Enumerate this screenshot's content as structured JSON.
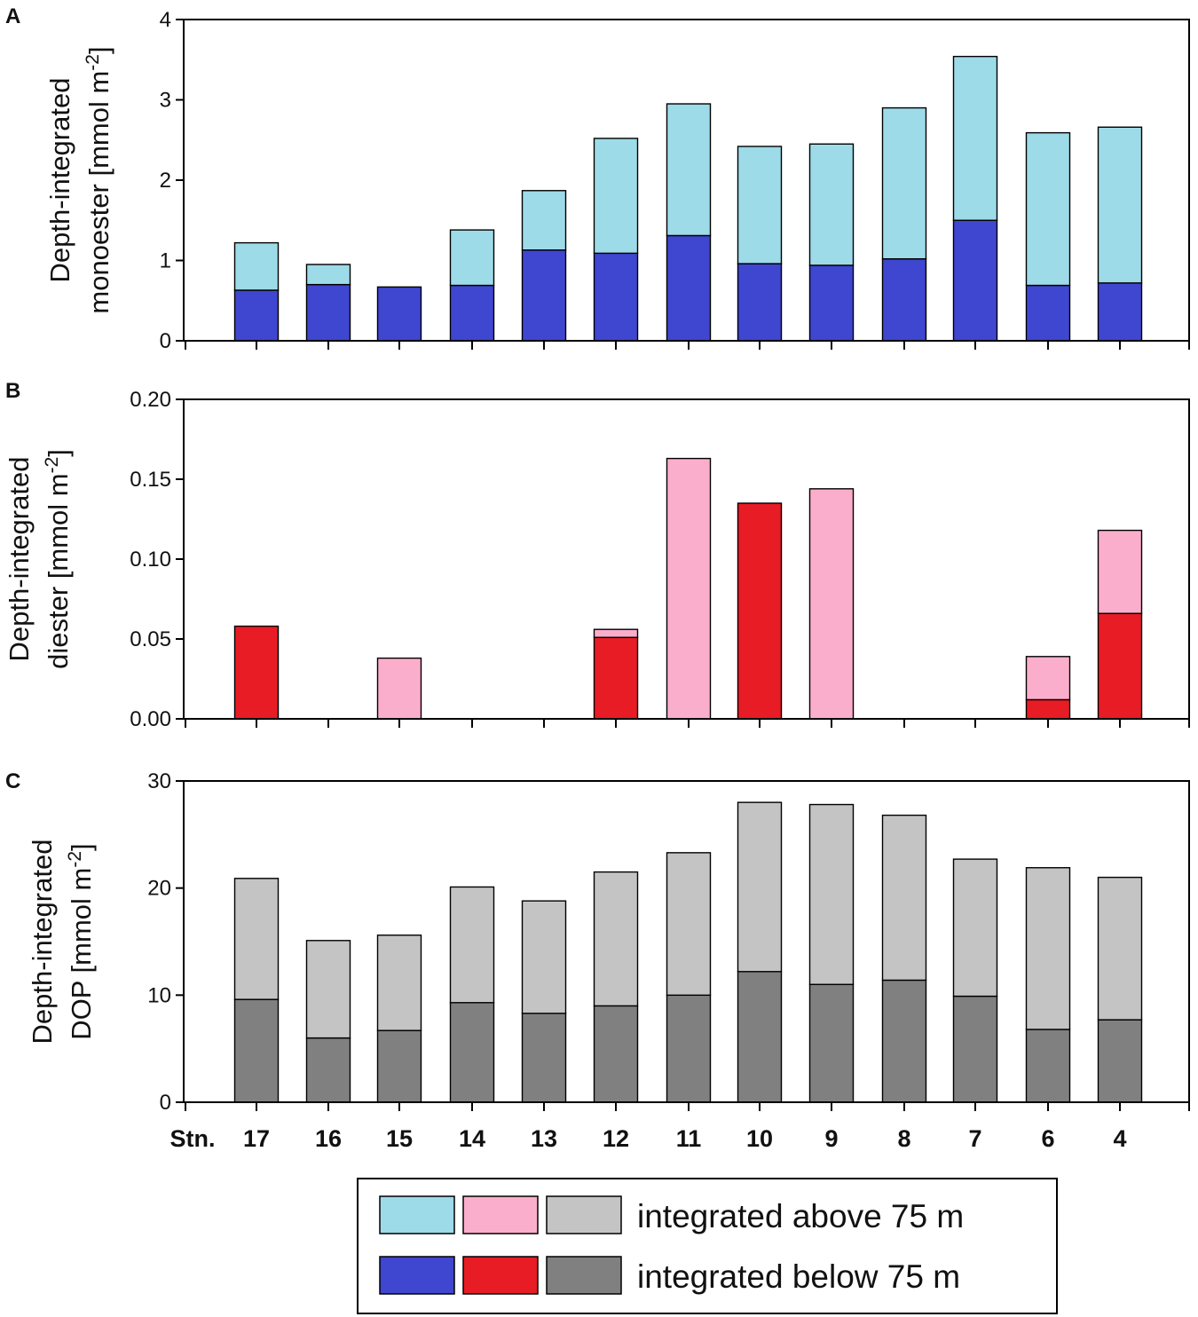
{
  "colors": {
    "monoester_above": "#9ddbe8",
    "monoester_below": "#3f46cf",
    "diester_above": "#fbaecb",
    "diester_below": "#e81c25",
    "dop_above": "#c4c4c4",
    "dop_below": "#808080",
    "axis": "#000000"
  },
  "x_axis_prefix": "Stn.",
  "stations": [
    "17",
    "16",
    "15",
    "14",
    "13",
    "12",
    "11",
    "10",
    "9",
    "8",
    "7",
    "6",
    "4"
  ],
  "legend": {
    "above_label": "integrated above 75 m",
    "below_label": "integrated below 75 m"
  },
  "chart_data": [
    {
      "type": "bar",
      "stacked": true,
      "panel": "A",
      "ylabel_line1": "Depth-integrated",
      "ylabel_line2": "monoester [mmol m",
      "ylabel_sup": "-2",
      "ylabel_close": "]",
      "ylim": [
        0,
        4
      ],
      "yticks": [
        "0",
        "1",
        "2",
        "3",
        "4"
      ],
      "categories": [
        "17",
        "16",
        "15",
        "14",
        "13",
        "12",
        "11",
        "10",
        "9",
        "8",
        "7",
        "6",
        "4"
      ],
      "series": [
        {
          "name": "integrated below 75 m",
          "color_key": "monoester_below",
          "values": [
            0.63,
            0.7,
            0.67,
            0.69,
            1.13,
            1.09,
            1.31,
            0.96,
            0.94,
            1.02,
            1.5,
            0.69,
            0.72
          ]
        },
        {
          "name": "integrated above 75 m",
          "color_key": "monoester_above",
          "values": [
            0.59,
            0.25,
            0.0,
            0.69,
            0.74,
            1.43,
            1.64,
            1.46,
            1.51,
            1.88,
            2.04,
            1.9,
            1.94
          ]
        }
      ]
    },
    {
      "type": "bar",
      "stacked": true,
      "panel": "B",
      "ylabel_line1": "Depth-integrated",
      "ylabel_line2": "diester [mmol m",
      "ylabel_sup": "-2",
      "ylabel_close": "]",
      "ylim": [
        0,
        0.2
      ],
      "yticks": [
        "0.00",
        "0.05",
        "0.10",
        "0.15",
        "0.20"
      ],
      "categories": [
        "17",
        "16",
        "15",
        "14",
        "13",
        "12",
        "11",
        "10",
        "9",
        "8",
        "7",
        "6",
        "4"
      ],
      "series": [
        {
          "name": "integrated below 75 m",
          "color_key": "diester_below",
          "values": [
            0.058,
            0,
            0,
            0,
            0,
            0.051,
            0,
            0.135,
            0,
            0,
            0,
            0.012,
            0.066
          ]
        },
        {
          "name": "integrated above 75 m",
          "color_key": "diester_above",
          "values": [
            0,
            0,
            0.038,
            0,
            0,
            0.005,
            0.163,
            0,
            0.144,
            0,
            0,
            0.027,
            0.052
          ]
        }
      ]
    },
    {
      "type": "bar",
      "stacked": true,
      "panel": "C",
      "ylabel_line1": "Depth-integrated",
      "ylabel_line2": "DOP [mmol m",
      "ylabel_sup": "-2",
      "ylabel_close": "]",
      "ylim": [
        0,
        30
      ],
      "yticks": [
        "0",
        "10",
        "20",
        "30"
      ],
      "categories": [
        "17",
        "16",
        "15",
        "14",
        "13",
        "12",
        "11",
        "10",
        "9",
        "8",
        "7",
        "6",
        "4"
      ],
      "series": [
        {
          "name": "integrated below 75 m",
          "color_key": "dop_below",
          "values": [
            9.6,
            6.0,
            6.7,
            9.3,
            8.3,
            9.0,
            10.0,
            12.2,
            11.0,
            11.4,
            9.9,
            6.8,
            7.7
          ]
        },
        {
          "name": "integrated above 75 m",
          "color_key": "dop_above",
          "values": [
            11.3,
            9.1,
            8.9,
            10.8,
            10.5,
            12.5,
            13.3,
            15.8,
            16.8,
            15.4,
            12.8,
            15.1,
            13.3
          ]
        }
      ]
    }
  ]
}
